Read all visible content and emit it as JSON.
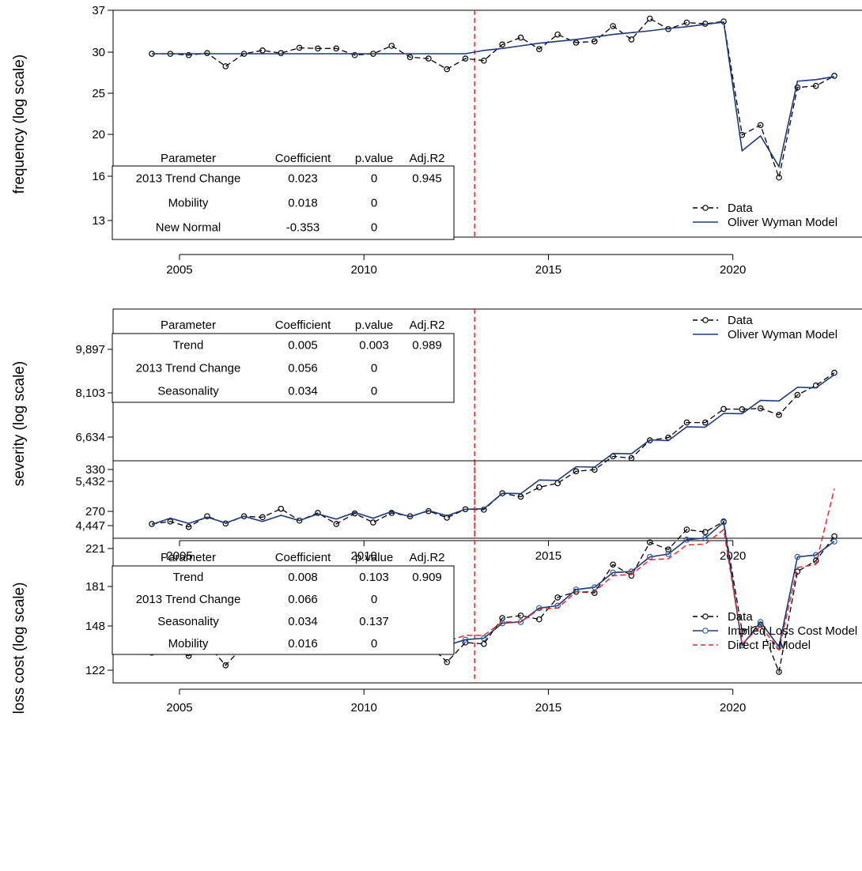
{
  "colors": {
    "data": "#000000",
    "model": "#1f3a78",
    "direct_fit": "#e8262a",
    "marker_data_fill": "#ffffff",
    "marker_model": "#2f5fa8"
  },
  "chart_data": [
    {
      "type": "line",
      "ylabel": "frequency (log scale)",
      "log_scale": true,
      "x_ticks": [
        "2005",
        "2010",
        "2015",
        "2020"
      ],
      "y_ticks": [
        "13",
        "16",
        "20",
        "25",
        "30",
        "37"
      ],
      "xlim": [
        2003.2,
        2023.5
      ],
      "ylim": [
        12,
        37
      ],
      "trend_change_line": 2013,
      "legend": [
        "Data",
        "Oliver Wyman Model"
      ],
      "legend_placement": "bottom-right",
      "table": {
        "header": [
          "Parameter",
          "Coefficient",
          "p.value",
          "Adj.R2"
        ],
        "rows": [
          [
            "2013 Trend Change",
            "0.023",
            "0",
            "0.945"
          ],
          [
            "Mobility",
            "0.018",
            "0",
            ""
          ],
          [
            "New  Normal",
            "-0.353",
            "0",
            ""
          ]
        ]
      },
      "series": [
        {
          "name": "Data",
          "style": "dashed-circle",
          "x": [
            2004.25,
            2004.75,
            2005.25,
            2005.75,
            2006.25,
            2006.75,
            2007.25,
            2007.75,
            2008.25,
            2008.75,
            2009.25,
            2009.75,
            2010.25,
            2010.75,
            2011.25,
            2011.75,
            2012.25,
            2012.75,
            2013.25,
            2013.75,
            2014.25,
            2014.75,
            2015.25,
            2015.75,
            2016.25,
            2016.75,
            2017.25,
            2017.75,
            2018.25,
            2018.75,
            2019.25,
            2019.75,
            2020.25,
            2020.75,
            2021.25,
            2021.75,
            2022.25,
            2022.75
          ],
          "y": [
            29.8,
            29.8,
            29.6,
            29.9,
            28.0,
            29.8,
            30.3,
            29.9,
            30.7,
            30.6,
            30.6,
            29.6,
            29.8,
            31.0,
            29.3,
            29.1,
            27.6,
            29.1,
            28.8,
            31.2,
            32.3,
            30.5,
            32.8,
            31.5,
            31.7,
            34.2,
            32.0,
            35.5,
            33.7,
            34.8,
            34.6,
            35.0,
            19.9,
            20.9,
            16.1,
            25.2,
            25.4,
            26.7
          ]
        },
        {
          "name": "Oliver Wyman Model",
          "style": "solid",
          "x": [
            2004.25,
            2004.75,
            2005.25,
            2005.75,
            2006.25,
            2006.75,
            2007.25,
            2007.75,
            2008.25,
            2008.75,
            2009.25,
            2009.75,
            2010.25,
            2010.75,
            2011.25,
            2011.75,
            2012.25,
            2012.75,
            2013.25,
            2013.75,
            2014.25,
            2014.75,
            2015.25,
            2015.75,
            2016.25,
            2016.75,
            2017.25,
            2017.75,
            2018.25,
            2018.75,
            2019.25,
            2019.75,
            2020.25,
            2020.75,
            2021.25,
            2021.75,
            2022.25,
            2022.75
          ],
          "y": [
            29.8,
            29.8,
            29.8,
            29.8,
            29.8,
            29.8,
            29.8,
            29.8,
            29.8,
            29.8,
            29.8,
            29.8,
            29.8,
            29.8,
            29.8,
            29.8,
            29.8,
            29.8,
            30.3,
            30.6,
            31.0,
            31.4,
            31.7,
            32.0,
            32.4,
            32.8,
            33.1,
            33.4,
            33.8,
            34.1,
            34.5,
            34.9,
            18.4,
            19.8,
            17.0,
            26.0,
            26.2,
            26.6
          ]
        }
      ]
    },
    {
      "type": "line",
      "ylabel": "severity (log scale)",
      "log_scale": true,
      "x_ticks": [
        "2005",
        "2010",
        "2015",
        "2020"
      ],
      "y_ticks": [
        "4,447",
        "5,432",
        "6,634",
        "8,103",
        "9,897"
      ],
      "xlim": [
        2003.2,
        2023.5
      ],
      "ylim": [
        4300,
        12000
      ],
      "trend_change_line": 2013,
      "legend": [
        "Data",
        "Oliver Wyman Model"
      ],
      "legend_placement": "top-right",
      "table": {
        "header": [
          "Parameter",
          "Coefficient",
          "p.value",
          "Adj.R2"
        ],
        "rows": [
          [
            "Trend",
            "0.005",
            "0.003",
            "0.989"
          ],
          [
            "2013 Trend Change",
            "0.056",
            "0",
            ""
          ],
          [
            "Seasonality",
            "0.034",
            "0",
            ""
          ]
        ]
      },
      "series": [
        {
          "name": "Data",
          "style": "dashed-circle",
          "x": [
            2004.25,
            2004.75,
            2005.25,
            2005.75,
            2006.25,
            2006.75,
            2007.25,
            2007.75,
            2008.25,
            2008.75,
            2009.25,
            2009.75,
            2010.25,
            2010.75,
            2011.25,
            2011.75,
            2012.25,
            2012.75,
            2013.25,
            2013.75,
            2014.25,
            2014.75,
            2015.25,
            2015.75,
            2016.25,
            2016.75,
            2017.25,
            2017.75,
            2018.25,
            2018.75,
            2019.25,
            2019.75,
            2020.25,
            2020.75,
            2021.25,
            2021.75,
            2022.25,
            2022.75
          ],
          "y": [
            4480,
            4530,
            4420,
            4640,
            4490,
            4640,
            4620,
            4800,
            4550,
            4710,
            4480,
            4700,
            4510,
            4710,
            4640,
            4750,
            4610,
            4790,
            4780,
            5150,
            5070,
            5290,
            5390,
            5690,
            5730,
            6090,
            6040,
            6550,
            6630,
            7100,
            7100,
            7550,
            7540,
            7570,
            7350,
            8050,
            8400,
            8900
          ]
        },
        {
          "name": "Oliver Wyman Model",
          "style": "solid",
          "x": [
            2004.25,
            2004.75,
            2005.25,
            2005.75,
            2006.25,
            2006.75,
            2007.25,
            2007.75,
            2008.25,
            2008.75,
            2009.25,
            2009.75,
            2010.25,
            2010.75,
            2011.25,
            2011.75,
            2012.25,
            2012.75,
            2013.25,
            2013.75,
            2014.25,
            2014.75,
            2015.25,
            2015.75,
            2016.25,
            2016.75,
            2017.25,
            2017.75,
            2018.25,
            2018.75,
            2019.25,
            2019.75,
            2020.25,
            2020.75,
            2021.25,
            2021.75,
            2022.25,
            2022.75
          ],
          "y": [
            4470,
            4600,
            4490,
            4620,
            4500,
            4640,
            4530,
            4660,
            4550,
            4690,
            4580,
            4720,
            4600,
            4740,
            4630,
            4760,
            4650,
            4790,
            4800,
            5150,
            5140,
            5470,
            5460,
            5810,
            5800,
            6170,
            6160,
            6560,
            6540,
            6960,
            6950,
            7400,
            7390,
            7850,
            7830,
            8330,
            8310,
            8820
          ]
        }
      ]
    },
    {
      "type": "line",
      "ylabel": "loss cost (log scale)",
      "log_scale": true,
      "x_ticks": [
        "2005",
        "2010",
        "2015",
        "2020"
      ],
      "y_ticks": [
        "122",
        "148",
        "181",
        "221",
        "270",
        "330"
      ],
      "xlim": [
        2003.2,
        2023.5
      ],
      "ylim": [
        117,
        330
      ],
      "trend_change_line": 2013,
      "legend": [
        "Data",
        "Implied Loss Cost Model",
        "Direct Fit Model"
      ],
      "legend_placement": "top-right",
      "table": {
        "header": [
          "Parameter",
          "Coefficient",
          "p.value",
          "Adj.R2"
        ],
        "rows": [
          [
            "Trend",
            "0.008",
            "0.103",
            "0.909"
          ],
          [
            "2013 Trend Change",
            "0.066",
            "0",
            ""
          ],
          [
            "Seasonality",
            "0.034",
            "0.137",
            ""
          ],
          [
            "Mobility",
            "0.016",
            "0",
            ""
          ]
        ]
      },
      "series": [
        {
          "name": "Data",
          "style": "dashed-circle",
          "x": [
            2004.25,
            2004.75,
            2005.25,
            2005.75,
            2006.25,
            2006.75,
            2007.25,
            2007.75,
            2008.25,
            2008.75,
            2009.25,
            2009.75,
            2010.25,
            2010.75,
            2011.25,
            2011.75,
            2012.25,
            2012.75,
            2013.25,
            2013.75,
            2014.25,
            2014.75,
            2015.25,
            2015.75,
            2016.25,
            2016.75,
            2017.25,
            2017.75,
            2018.25,
            2018.75,
            2019.25,
            2019.75,
            2020.25,
            2020.75,
            2021.25,
            2021.75,
            2022.25,
            2022.75
          ],
          "y": [
            134,
            135,
            131,
            139,
            125,
            138,
            140,
            144,
            140,
            145,
            136,
            140,
            134,
            145,
            138,
            139,
            127,
            140,
            139,
            158,
            160,
            157,
            175,
            180,
            179,
            206,
            195,
            230,
            222,
            245,
            242,
            255,
            148,
            153,
            121,
            199,
            210,
            237
          ]
        },
        {
          "name": "Implied Loss Cost Model",
          "style": "solid-circle",
          "x": [
            2004.25,
            2004.75,
            2005.25,
            2005.75,
            2006.25,
            2006.75,
            2007.25,
            2007.75,
            2008.25,
            2008.75,
            2009.25,
            2009.75,
            2010.25,
            2010.75,
            2011.25,
            2011.75,
            2012.25,
            2012.75,
            2013.25,
            2013.75,
            2014.25,
            2014.75,
            2015.25,
            2015.75,
            2016.25,
            2016.75,
            2017.25,
            2017.75,
            2018.25,
            2018.75,
            2019.25,
            2019.75,
            2020.25,
            2020.75,
            2021.25,
            2021.75,
            2022.25,
            2022.75
          ],
          "y": [
            133,
            137,
            134,
            138,
            135,
            138,
            135,
            138,
            135,
            139,
            136,
            139,
            136,
            141,
            137,
            141,
            138,
            142,
            143,
            154,
            155,
            166,
            168,
            182,
            184,
            198,
            199,
            214,
            217,
            233,
            235,
            254,
            138,
            155,
            137,
            214,
            216,
            231
          ]
        },
        {
          "name": "Direct Fit Model",
          "style": "dashed",
          "x": [
            2004.25,
            2004.75,
            2005.25,
            2005.75,
            2006.25,
            2006.75,
            2007.25,
            2007.75,
            2008.25,
            2008.75,
            2009.25,
            2009.75,
            2010.25,
            2010.75,
            2011.25,
            2011.75,
            2012.25,
            2012.75,
            2013.25,
            2013.75,
            2014.25,
            2014.75,
            2015.25,
            2015.75,
            2016.25,
            2016.75,
            2017.25,
            2017.75,
            2018.25,
            2018.75,
            2019.25,
            2019.75,
            2020.25,
            2020.75,
            2021.25,
            2021.75,
            2022.25,
            2022.75
          ],
          "y": [
            133,
            136,
            134,
            137,
            135,
            138,
            136,
            139,
            137,
            140,
            138,
            141,
            139,
            142,
            140,
            143,
            141,
            145,
            145,
            155,
            155,
            165,
            166,
            180,
            180,
            195,
            196,
            211,
            212,
            227,
            228,
            245,
            139,
            152,
            135,
            203,
            206,
            300
          ]
        }
      ]
    }
  ]
}
